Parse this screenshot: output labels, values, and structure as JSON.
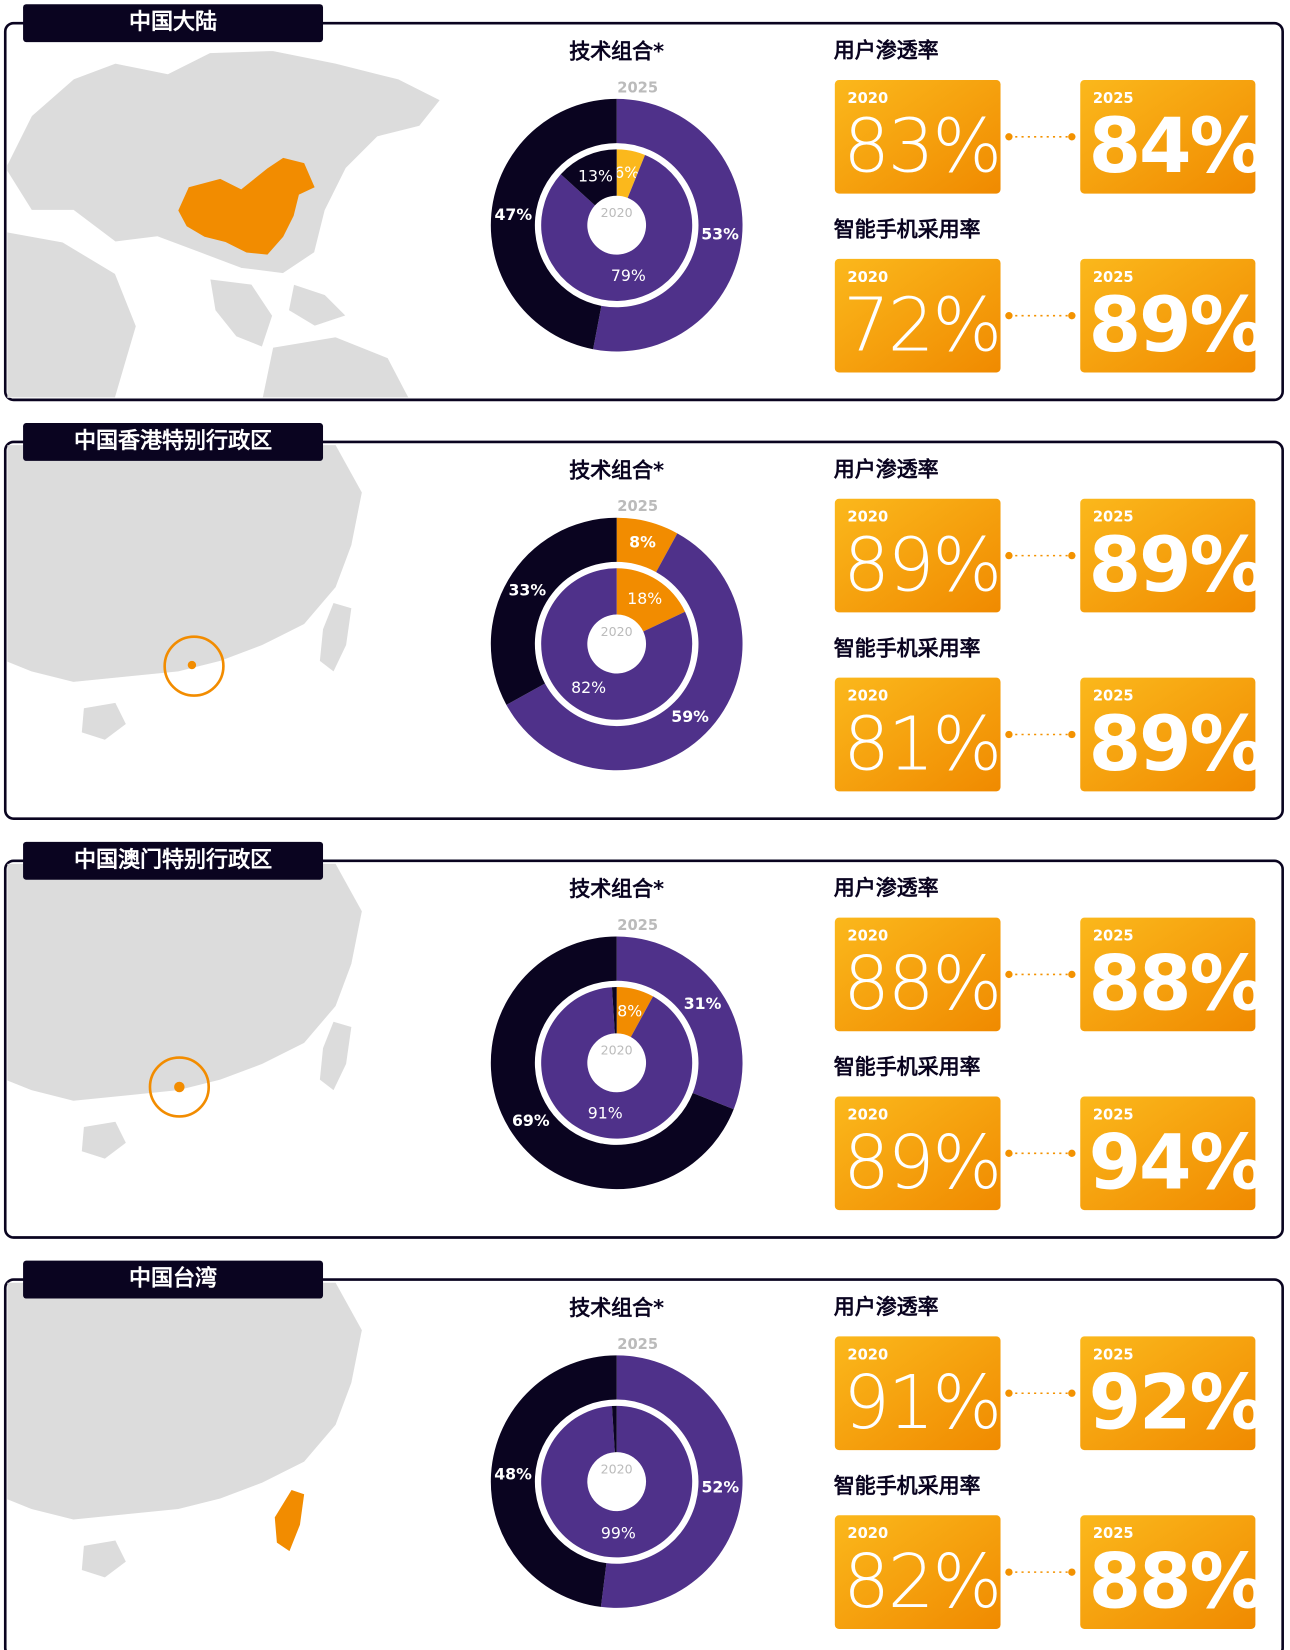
{
  "panels": [
    {
      "title": "中国大陆",
      "map": "mainland",
      "donut": {
        "title": "技术组合*",
        "outer_label": "2025",
        "inner_label": "2020",
        "outer": {
          "values": [
            53,
            47
          ],
          "colors": [
            "#4f318a",
            "#0a0420"
          ],
          "value_labels": [
            "53%",
            "47%"
          ]
        },
        "inner": {
          "values": [
            6,
            79,
            13
          ],
          "colors": [
            "#fbb81c",
            "#4f318a",
            "#0a0420"
          ],
          "value_labels": [
            "6%",
            "79%",
            "13%"
          ]
        }
      },
      "metrics": [
        {
          "title": "用户渗透率",
          "year_from": "2020",
          "from": 83,
          "from_label": "83%",
          "year_to": "2025",
          "to": 84,
          "to_label": "84%"
        },
        {
          "title": "智能手机采用率",
          "year_from": "2020",
          "from": 72,
          "from_label": "72%",
          "year_to": "2025",
          "to": 89,
          "to_label": "89%"
        }
      ]
    },
    {
      "title": "中国香港特别行政区",
      "map": "hongkong",
      "donut": {
        "title": "技术组合*",
        "outer_label": "2025",
        "inner_label": "2020",
        "outer": {
          "values": [
            8,
            59,
            33
          ],
          "colors": [
            "#f28c00",
            "#4f318a",
            "#0a0420"
          ],
          "value_labels": [
            "8%",
            "59%",
            "33%"
          ]
        },
        "inner": {
          "values": [
            18,
            82
          ],
          "colors": [
            "#f28c00",
            "#4f318a"
          ],
          "value_labels": [
            "18%",
            "82%"
          ]
        }
      },
      "metrics": [
        {
          "title": "用户渗透率",
          "year_from": "2020",
          "from": 89,
          "from_label": "89%",
          "year_to": "2025",
          "to": 89,
          "to_label": "89%"
        },
        {
          "title": "智能手机采用率",
          "year_from": "2020",
          "from": 81,
          "from_label": "81%",
          "year_to": "2025",
          "to": 89,
          "to_label": "89%"
        }
      ]
    },
    {
      "title": "中国澳门特别行政区",
      "map": "macau",
      "donut": {
        "title": "技术组合*",
        "outer_label": "2025",
        "inner_label": "2020",
        "outer": {
          "values": [
            31,
            69
          ],
          "colors": [
            "#4f318a",
            "#0a0420"
          ],
          "value_labels": [
            "31%",
            "69%"
          ]
        },
        "inner": {
          "values": [
            8,
            91,
            1
          ],
          "colors": [
            "#f28c00",
            "#4f318a",
            "#0a0420"
          ],
          "value_labels": [
            "8%",
            "91%",
            null
          ]
        }
      },
      "metrics": [
        {
          "title": "用户渗透率",
          "year_from": "2020",
          "from": 88,
          "from_label": "88%",
          "year_to": "2025",
          "to": 88,
          "to_label": "88%"
        },
        {
          "title": "智能手机采用率",
          "year_from": "2020",
          "from": 89,
          "from_label": "89%",
          "year_to": "2025",
          "to": 94,
          "to_label": "94%"
        }
      ]
    },
    {
      "title": "中国台湾",
      "map": "taiwan",
      "donut": {
        "title": "技术组合*",
        "outer_label": "2025",
        "inner_label": "2020",
        "outer": {
          "values": [
            52,
            48
          ],
          "colors": [
            "#4f318a",
            "#0a0420"
          ],
          "value_labels": [
            "52%",
            "48%"
          ]
        },
        "inner": {
          "values": [
            99,
            1
          ],
          "colors": [
            "#4f318a",
            "#0a0420"
          ],
          "value_labels": [
            "99%",
            null
          ]
        }
      },
      "metrics": [
        {
          "title": "用户渗透率",
          "year_from": "2020",
          "from": 91,
          "from_label": "91%",
          "year_to": "2025",
          "to": 92,
          "to_label": "92%"
        },
        {
          "title": "智能手机采用率",
          "year_from": "2020",
          "from": 82,
          "from_label": "82%",
          "year_to": "2025",
          "to": 88,
          "to_label": "88%"
        }
      ]
    }
  ]
}
